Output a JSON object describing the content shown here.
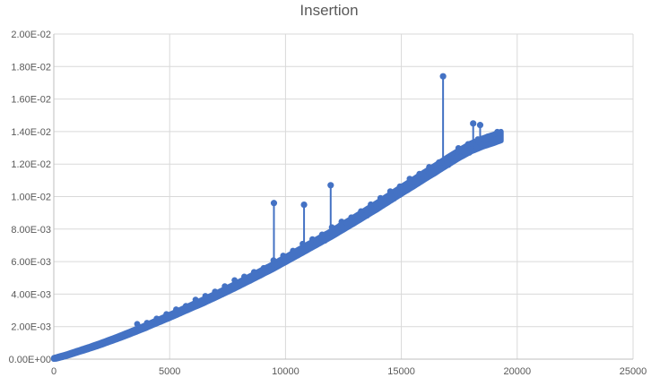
{
  "chart_data": {
    "type": "line",
    "title": "Insertion",
    "xlabel": "",
    "ylabel": "",
    "xlim": [
      0,
      25000
    ],
    "ylim": [
      0,
      0.02
    ],
    "x_ticks": [
      0,
      5000,
      10000,
      15000,
      20000,
      25000
    ],
    "x_tick_labels": [
      "0",
      "5000",
      "10000",
      "15000",
      "20000",
      "25000"
    ],
    "y_ticks": [
      0,
      0.002,
      0.004,
      0.006,
      0.008,
      0.01,
      0.012,
      0.014,
      0.016,
      0.018,
      0.02
    ],
    "y_tick_labels": [
      "0.00E+00",
      "2.00E-03",
      "4.00E-03",
      "6.00E-03",
      "8.00E-03",
      "1.00E-02",
      "1.20E-02",
      "1.40E-02",
      "1.60E-02",
      "1.80E-02",
      "2.00E-02"
    ],
    "grid": true,
    "legend": "none",
    "color": "#4472C4",
    "series": [
      {
        "x": [
          0,
          500,
          1000,
          1500,
          2000,
          2500,
          3000,
          3500,
          4000,
          4500,
          5000,
          5500,
          6000,
          6500,
          7000,
          7500,
          8000,
          8500,
          9000,
          9500,
          10000,
          10500,
          11000,
          11500,
          12000,
          12500,
          13000,
          13500,
          14000,
          14500,
          15000,
          15500,
          16000,
          16500,
          17000,
          17500,
          18000,
          18500,
          19000,
          19300
        ],
        "y": [
          3e-05,
          0.00022,
          0.00045,
          0.00068,
          0.00092,
          0.00118,
          0.00145,
          0.00173,
          0.00202,
          0.00233,
          0.00263,
          0.00295,
          0.00327,
          0.00358,
          0.00392,
          0.00426,
          0.00462,
          0.00498,
          0.00535,
          0.00572,
          0.00612,
          0.00652,
          0.00692,
          0.00732,
          0.00772,
          0.00815,
          0.00858,
          0.00902,
          0.00946,
          0.00992,
          0.01038,
          0.01082,
          0.01128,
          0.01172,
          0.01218,
          0.01262,
          0.01302,
          0.01332,
          0.01356,
          0.01372
        ]
      }
    ],
    "spikes": [
      {
        "x": 9500,
        "y": 0.0096,
        "base": 0.0062
      },
      {
        "x": 10800,
        "y": 0.0095,
        "base": 0.0069
      },
      {
        "x": 11950,
        "y": 0.0107,
        "base": 0.0075
      },
      {
        "x": 16800,
        "y": 0.0174,
        "base": 0.012
      },
      {
        "x": 18100,
        "y": 0.0145,
        "base": 0.0131
      },
      {
        "x": 18400,
        "y": 0.0144,
        "base": 0.0132
      }
    ]
  }
}
